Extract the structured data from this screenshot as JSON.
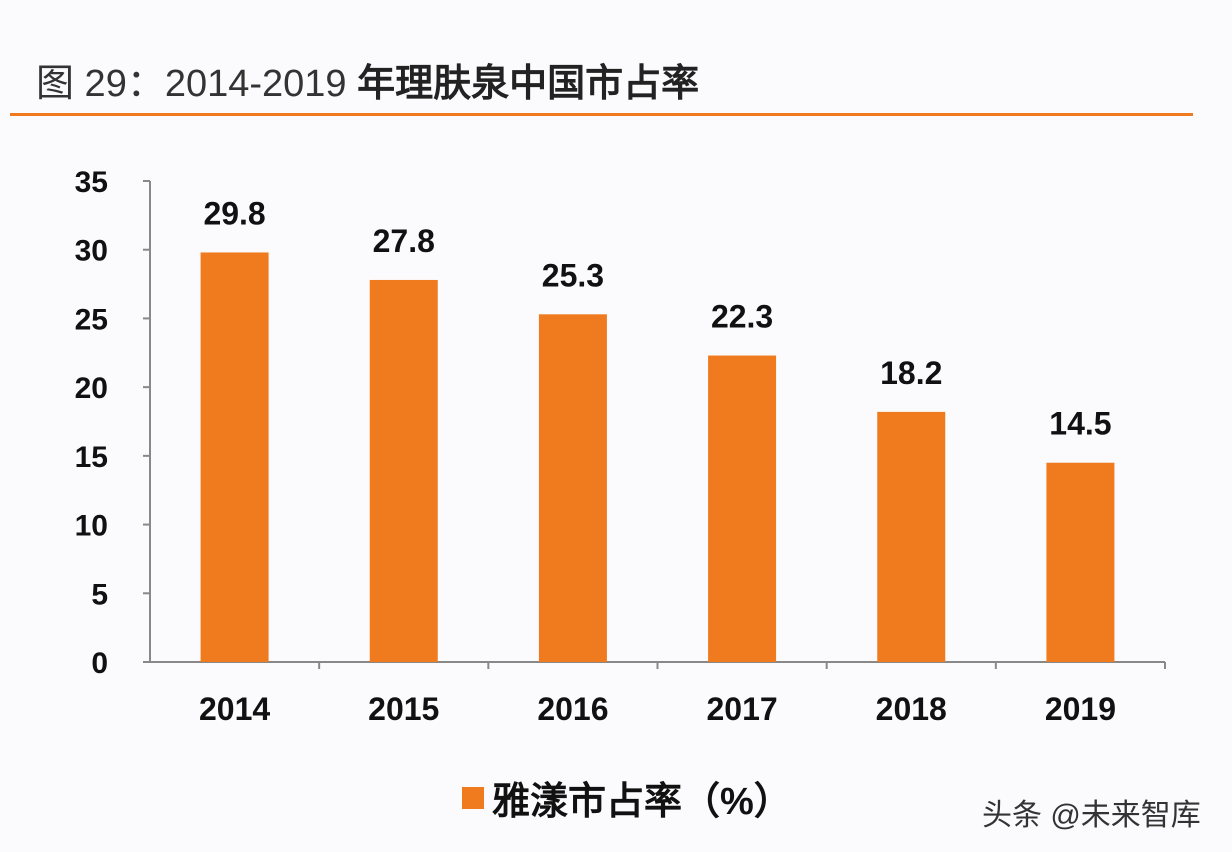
{
  "title": {
    "prefix": "图 29：2014-2019 ",
    "cn": "年理肤泉中国市占率"
  },
  "colors": {
    "bar": "#f07b1f",
    "accent": "#f07b1f"
  },
  "chart_data": {
    "type": "bar",
    "title": "图 29：2014-2019 年理肤泉中国市占率",
    "categories": [
      "2014",
      "2015",
      "2016",
      "2017",
      "2018",
      "2019"
    ],
    "series": [
      {
        "name": "雅漾市占率（%）",
        "values": [
          29.8,
          27.8,
          25.3,
          22.3,
          18.2,
          14.5
        ]
      }
    ],
    "data_labels": [
      "29.8",
      "27.8",
      "25.3",
      "22.3",
      "18.2",
      "14.5"
    ],
    "ylim": [
      0,
      35
    ],
    "yticks": [
      "0",
      "5",
      "10",
      "15",
      "20",
      "25",
      "30",
      "35"
    ],
    "xlabel": "",
    "ylabel": "",
    "grid": false,
    "legend": "bottom"
  },
  "legend_label": "雅漾市占率（%）",
  "watermark": "头条 @未来智库"
}
